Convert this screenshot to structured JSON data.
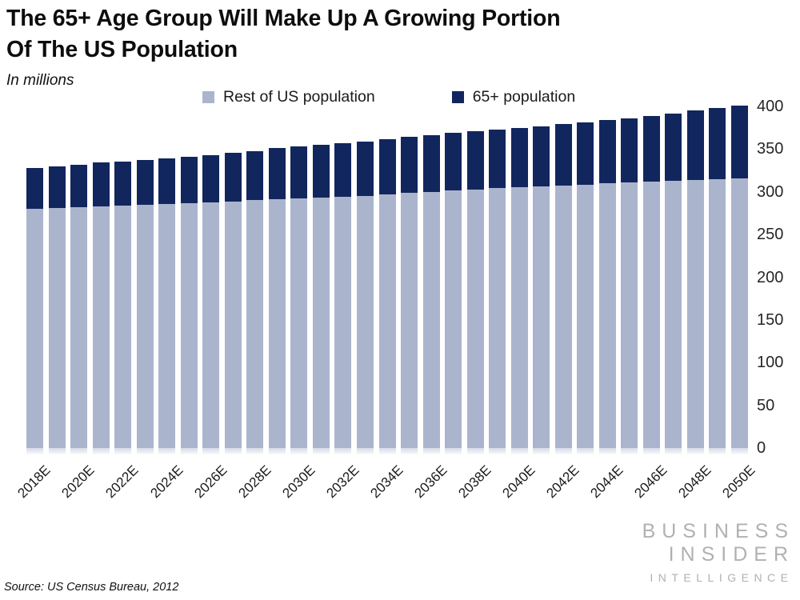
{
  "page": {
    "title_line1": "The 65+ Age Group Will Make Up A Growing Portion",
    "title_line2": "Of The US Population",
    "subtitle": "In millions",
    "source": "Source: US Census Bureau, 2012",
    "logo": {
      "line1": "BUSINESS",
      "line2": "INSIDER",
      "line3": "INTELLIGENCE"
    }
  },
  "colors": {
    "rest_population": "#aab5cd",
    "senior_population": "#12265e",
    "logo_gray": "#b1b1b3"
  },
  "chart_data": {
    "type": "bar",
    "stacked": true,
    "title": "The 65+ Age Group Will Make Up A Growing Portion Of The US Population",
    "subtitle": "In millions",
    "units": "millions",
    "categories": [
      "2018E",
      "2019E",
      "2020E",
      "2021E",
      "2022E",
      "2023E",
      "2024E",
      "2025E",
      "2026E",
      "2027E",
      "2028E",
      "2029E",
      "2030E",
      "2031E",
      "2032E",
      "2033E",
      "2034E",
      "2035E",
      "2036E",
      "2037E",
      "2038E",
      "2039E",
      "2040E",
      "2041E",
      "2042E",
      "2043E",
      "2044E",
      "2045E",
      "2046E",
      "2047E",
      "2048E",
      "2049E",
      "2050E"
    ],
    "series": [
      {
        "name": "Rest of US population",
        "color": "#aab5cd",
        "values": [
          280,
          281,
          282,
          283,
          284,
          285,
          286,
          287,
          288,
          289,
          290,
          291,
          292,
          293,
          294,
          295,
          297,
          299,
          300,
          302,
          303,
          304,
          305,
          306,
          307,
          308,
          310,
          311,
          312,
          313,
          314,
          315,
          316
        ]
      },
      {
        "name": "65+ population",
        "color": "#12265e",
        "values": [
          48,
          49,
          50,
          51,
          51,
          52,
          53,
          54,
          55,
          57,
          58,
          60,
          61,
          62,
          63,
          64,
          65,
          65,
          66,
          67,
          68,
          69,
          70,
          71,
          72,
          73,
          74,
          75,
          77,
          79,
          81,
          83,
          85
        ]
      }
    ],
    "totals": [
      328,
      330,
      332,
      334,
      335,
      337,
      339,
      341,
      343,
      346,
      348,
      351,
      353,
      355,
      357,
      359,
      362,
      364,
      366,
      369,
      371,
      373,
      375,
      377,
      379,
      381,
      384,
      386,
      389,
      392,
      395,
      398,
      401
    ],
    "ylim": [
      0,
      400
    ],
    "yticks": [
      0,
      50,
      100,
      150,
      200,
      250,
      300,
      350,
      400
    ],
    "y_axis_side": "right",
    "xtick_labels": [
      "2018E",
      "2020E",
      "2022E",
      "2024E",
      "2026E",
      "2028E",
      "2030E",
      "2032E",
      "2034E",
      "2036E",
      "2038E",
      "2040E",
      "2042E",
      "2044E",
      "2046E",
      "2048E",
      "2050E"
    ],
    "legend_position": "top",
    "grid": false
  }
}
